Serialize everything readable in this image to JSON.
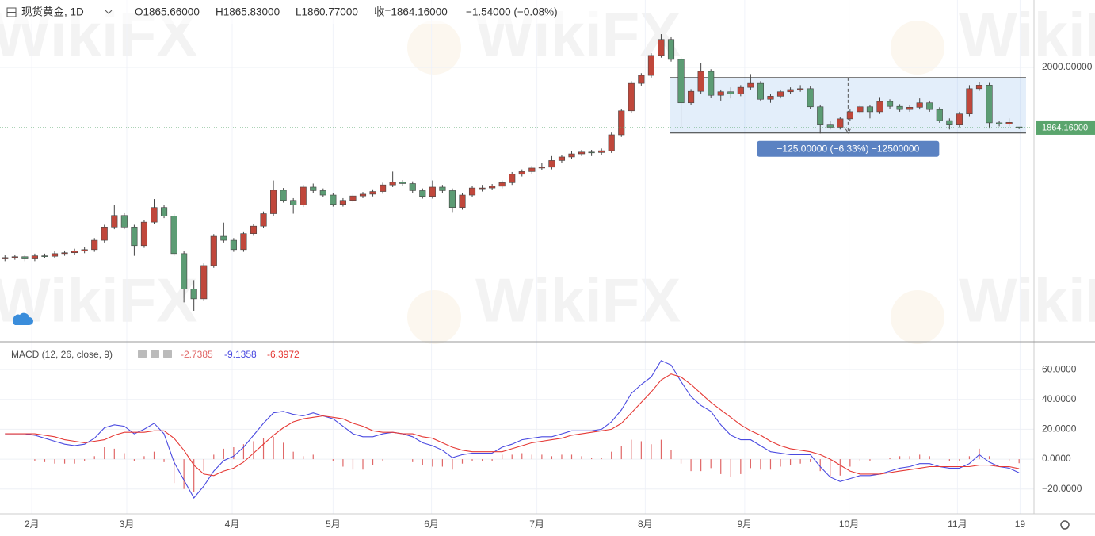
{
  "header": {
    "symbol": "现货黄金, 1D",
    "open": "O1865.66000",
    "high": "H1865.83000",
    "low": "L1860.77000",
    "close": "收=1864.16000",
    "change": "−1.54000 (−0.08%)"
  },
  "watermark": "WikiFX",
  "chart_data": [
    {
      "type": "candlestick",
      "up_color": "#c0473b",
      "down_color": "#5c9c74",
      "xlim": [
        0,
        104
      ],
      "ylim": [
        1383,
        2152
      ],
      "yticks": [
        {
          "value": 2000,
          "label": "2000.00000"
        }
      ],
      "xticks": [
        {
          "value": 3.2,
          "label": "2月"
        },
        {
          "value": 12.75,
          "label": "3月"
        },
        {
          "value": 23.35,
          "label": "4月"
        },
        {
          "value": 33.5,
          "label": "5月"
        },
        {
          "value": 43.4,
          "label": "6月"
        },
        {
          "value": 54,
          "label": "7月"
        },
        {
          "value": 64.9,
          "label": "8月"
        },
        {
          "value": 74.9,
          "label": "9月"
        },
        {
          "value": 85.4,
          "label": "10月"
        },
        {
          "value": 96.3,
          "label": "11月"
        },
        {
          "value": 102.6,
          "label": "19"
        }
      ],
      "open": [
        1568,
        1571,
        1573,
        1568,
        1575,
        1574,
        1580,
        1582,
        1586,
        1589,
        1610,
        1640,
        1666,
        1640,
        1598,
        1651,
        1684,
        1665,
        1580,
        1500,
        1478,
        1553,
        1619,
        1610,
        1589,
        1625,
        1642,
        1670,
        1723,
        1700,
        1690,
        1730,
        1722,
        1712,
        1691,
        1700,
        1710,
        1714,
        1720,
        1735,
        1741,
        1738,
        1722,
        1709,
        1730,
        1722,
        1684,
        1712,
        1728,
        1728,
        1732,
        1740,
        1759,
        1765,
        1773,
        1775,
        1790,
        1798,
        1805,
        1809,
        1808,
        1812,
        1848,
        1902,
        1964,
        1982,
        2027,
        2063,
        2018,
        1920,
        1946,
        1991,
        1937,
        1945,
        1940,
        1955,
        1964,
        1928,
        1935,
        1945,
        1950,
        1952,
        1911,
        1870,
        1865,
        1884,
        1900,
        1911,
        1900,
        1923,
        1912,
        1905,
        1910,
        1920,
        1905,
        1880,
        1870,
        1895,
        1952,
        1960,
        1875,
        1872,
        1865.66
      ],
      "high": [
        1576,
        1578,
        1578,
        1580,
        1580,
        1585,
        1587,
        1591,
        1594,
        1615,
        1645,
        1689,
        1671,
        1645,
        1656,
        1703,
        1690,
        1670,
        1585,
        1520,
        1558,
        1624,
        1650,
        1615,
        1630,
        1647,
        1675,
        1745,
        1728,
        1705,
        1735,
        1738,
        1727,
        1717,
        1705,
        1715,
        1719,
        1725,
        1740,
        1765,
        1746,
        1743,
        1727,
        1745,
        1735,
        1727,
        1717,
        1733,
        1735,
        1737,
        1745,
        1764,
        1770,
        1778,
        1785,
        1800,
        1803,
        1812,
        1814,
        1814,
        1817,
        1853,
        1907,
        1969,
        1987,
        2032,
        2075,
        2068,
        2023,
        1951,
        2010,
        1996,
        1950,
        1955,
        1960,
        1985,
        1969,
        1940,
        1950,
        1955,
        1960,
        1957,
        1916,
        1880,
        1889,
        1905,
        1916,
        1916,
        1933,
        1928,
        1917,
        1915,
        1930,
        1925,
        1910,
        1885,
        1900,
        1960,
        1966,
        1965,
        1880,
        1885,
        1865.83
      ],
      "low": [
        1563,
        1566,
        1563,
        1563,
        1569,
        1569,
        1575,
        1577,
        1581,
        1584,
        1605,
        1635,
        1635,
        1575,
        1593,
        1646,
        1660,
        1575,
        1470,
        1451,
        1473,
        1548,
        1605,
        1584,
        1584,
        1620,
        1637,
        1665,
        1695,
        1670,
        1685,
        1717,
        1707,
        1686,
        1686,
        1695,
        1705,
        1709,
        1715,
        1730,
        1733,
        1717,
        1704,
        1704,
        1717,
        1672,
        1679,
        1707,
        1720,
        1723,
        1727,
        1735,
        1754,
        1760,
        1768,
        1770,
        1785,
        1793,
        1800,
        1800,
        1803,
        1807,
        1843,
        1897,
        1959,
        1977,
        2022,
        2013,
        1865,
        1915,
        1941,
        1932,
        1925,
        1930,
        1935,
        1950,
        1923,
        1920,
        1930,
        1940,
        1945,
        1906,
        1851,
        1860,
        1860,
        1879,
        1895,
        1885,
        1895,
        1907,
        1900,
        1900,
        1905,
        1900,
        1875,
        1860,
        1865,
        1890,
        1947,
        1862,
        1867,
        1867,
        1860.77
      ],
      "close": [
        1571,
        1573,
        1568,
        1575,
        1574,
        1580,
        1582,
        1586,
        1589,
        1610,
        1640,
        1666,
        1640,
        1598,
        1651,
        1684,
        1665,
        1580,
        1500,
        1478,
        1553,
        1619,
        1610,
        1589,
        1625,
        1642,
        1670,
        1723,
        1700,
        1690,
        1730,
        1722,
        1712,
        1691,
        1700,
        1710,
        1714,
        1720,
        1735,
        1741,
        1738,
        1722,
        1709,
        1730,
        1722,
        1684,
        1712,
        1728,
        1728,
        1732,
        1740,
        1759,
        1765,
        1773,
        1775,
        1790,
        1798,
        1805,
        1809,
        1808,
        1812,
        1848,
        1902,
        1964,
        1982,
        2027,
        2063,
        2018,
        1920,
        1946,
        1991,
        1937,
        1945,
        1940,
        1955,
        1964,
        1928,
        1935,
        1945,
        1950,
        1952,
        1911,
        1870,
        1865,
        1884,
        1900,
        1911,
        1900,
        1923,
        1912,
        1905,
        1910,
        1920,
        1905,
        1880,
        1870,
        1895,
        1952,
        1960,
        1875,
        1872,
        1876,
        1864.16
      ],
      "last_price": {
        "value": 1864.16,
        "label": "1864.16000",
        "color": "#5aa56d"
      },
      "range_box": {
        "xlim": [
          67.4,
          103.2
        ],
        "ylim": [
          1852,
          1977
        ],
        "label": "−125.00000 (−6.33%) −12500000",
        "color": "#5b82c2"
      }
    },
    {
      "type": "macd",
      "title": "MACD (12, 26, close, 9)",
      "xlim": [
        0,
        104
      ],
      "ylim": [
        -36.6,
        78.1
      ],
      "yticks": [
        {
          "value": 60,
          "label": "60.0000"
        },
        {
          "value": 40,
          "label": "40.0000"
        },
        {
          "value": 20,
          "label": "20.0000"
        },
        {
          "value": 0,
          "label": "0.0000"
        },
        {
          "value": -20,
          "label": "−20.0000"
        }
      ],
      "series": [
        {
          "color": "#e06666",
          "last_label": "-2.7385",
          "values": [
            0,
            0,
            0,
            -1,
            -2,
            -3,
            -3,
            -3,
            -1,
            2,
            8,
            7,
            4,
            -1,
            2,
            5,
            -2,
            -16,
            -20,
            -22,
            -8,
            3,
            7,
            8,
            10,
            12,
            14,
            15,
            11,
            5,
            2,
            3,
            0,
            -1,
            -5,
            -7,
            -7,
            -4,
            -1,
            0,
            0,
            -2,
            -4,
            -5,
            -5,
            -7,
            -3,
            -1,
            -1,
            -1,
            3,
            3,
            4,
            3,
            3,
            2,
            3,
            3,
            2,
            1,
            1,
            5,
            9,
            13,
            12,
            10,
            13,
            6,
            -3,
            -8,
            -8,
            -6,
            -10,
            -12,
            -10,
            -6,
            -7,
            -7,
            -5,
            -4,
            -3,
            -2,
            -8,
            -12,
            -11,
            -5,
            -1,
            -1,
            0,
            1,
            2,
            2,
            3,
            2,
            0,
            -1,
            -1,
            2,
            7,
            2,
            0,
            -1,
            -2.7385
          ]
        },
        {
          "color": "#4a4ae0",
          "last_label": "-9.1358",
          "values": [
            17,
            17,
            17,
            16,
            14,
            12,
            10,
            9,
            10,
            14,
            21,
            23,
            22,
            17,
            20,
            24,
            17,
            -2,
            -14,
            -26,
            -18,
            -8,
            -1,
            2,
            8,
            16,
            24,
            31,
            32,
            30,
            29,
            31,
            29,
            27,
            22,
            17,
            15,
            15,
            17,
            18,
            17,
            15,
            11,
            9,
            6,
            1,
            3,
            4,
            4,
            4,
            8,
            10,
            13,
            14,
            15,
            15,
            17,
            19,
            19,
            19,
            20,
            25,
            33,
            44,
            50,
            55,
            66,
            63,
            52,
            42,
            36,
            32,
            23,
            16,
            13,
            13,
            9,
            5,
            4,
            3,
            3,
            3,
            -5,
            -12,
            -15,
            -13,
            -11,
            -11,
            -10,
            -8,
            -6,
            -5,
            -3,
            -3,
            -5,
            -6,
            -6,
            -3,
            3,
            -2,
            -5,
            -6,
            -9.1358
          ]
        },
        {
          "color": "#e53935",
          "last_label": "-6.3972",
          "values": [
            17,
            17,
            17,
            17,
            16,
            15,
            13,
            12,
            11,
            12,
            13,
            16,
            18,
            18,
            18,
            19,
            19,
            14,
            6,
            -4,
            -10,
            -11,
            -8,
            -6,
            -2,
            4,
            10,
            16,
            21,
            25,
            27,
            28,
            29,
            28,
            27,
            24,
            22,
            19,
            18,
            18,
            17,
            17,
            15,
            14,
            11,
            8,
            6,
            5,
            5,
            5,
            5,
            7,
            9,
            11,
            12,
            13,
            14,
            16,
            17,
            18,
            19,
            20,
            24,
            31,
            38,
            45,
            53,
            57,
            55,
            50,
            44,
            38,
            33,
            28,
            23,
            19,
            16,
            12,
            9,
            7,
            6,
            5,
            3,
            0,
            -4,
            -8,
            -10,
            -10,
            -10,
            -9,
            -8,
            -7,
            -6,
            -5,
            -5,
            -5,
            -5,
            -5,
            -4,
            -4,
            -5,
            -5,
            -6.3972
          ]
        }
      ]
    }
  ]
}
